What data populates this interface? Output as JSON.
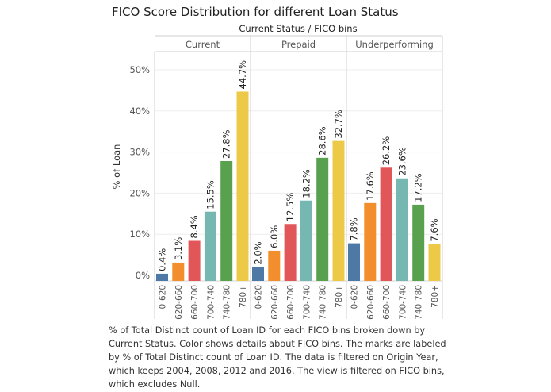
{
  "title": "FICO Score Distribution for different Loan Status",
  "caption": "% of Total Distinct count of Loan ID for each FICO bins broken down by Current Status.  Color shows details about FICO bins.  The marks are labeled by % of Total Distinct count of Loan ID. The data is filtered on Origin Year, which keeps 2004, 2008, 2012 and 2016. The view is filtered on FICO bins, which excludes Null.",
  "chart_data": {
    "type": "bar",
    "header": "Current Status  /  FICO bins",
    "ylabel": "% of Loan",
    "ylim": [
      0,
      50
    ],
    "yticks": [
      0,
      10,
      20,
      30,
      40,
      50
    ],
    "ytick_labels": [
      "0%",
      "10%",
      "20%",
      "30%",
      "40%",
      "50%"
    ],
    "grid": true,
    "categories": [
      "0-620",
      "620-660",
      "660-700",
      "700-740",
      "740-780",
      "780+"
    ],
    "colors": {
      "0-620": "#4e79a7",
      "620-660": "#f28e2b",
      "660-700": "#e15759",
      "700-740": "#76b7b2",
      "740-780": "#59a14f",
      "780+": "#edc948"
    },
    "panels": [
      {
        "name": "Current",
        "values": [
          0.4,
          3.1,
          8.4,
          15.5,
          27.8,
          44.7
        ],
        "labels": [
          "0.4%",
          "3.1%",
          "8.4%",
          "15.5%",
          "27.8%",
          "44.7%"
        ]
      },
      {
        "name": "Prepaid",
        "values": [
          2.0,
          6.0,
          12.5,
          18.2,
          28.6,
          32.7
        ],
        "labels": [
          "2.0%",
          "6.0%",
          "12.5%",
          "18.2%",
          "28.6%",
          "32.7%"
        ]
      },
      {
        "name": "Underperforming",
        "values": [
          7.8,
          17.6,
          26.2,
          23.6,
          17.2,
          7.6
        ],
        "labels": [
          "7.8%",
          "17.6%",
          "26.2%",
          "23.6%",
          "17.2%",
          "7.6%"
        ]
      }
    ]
  }
}
